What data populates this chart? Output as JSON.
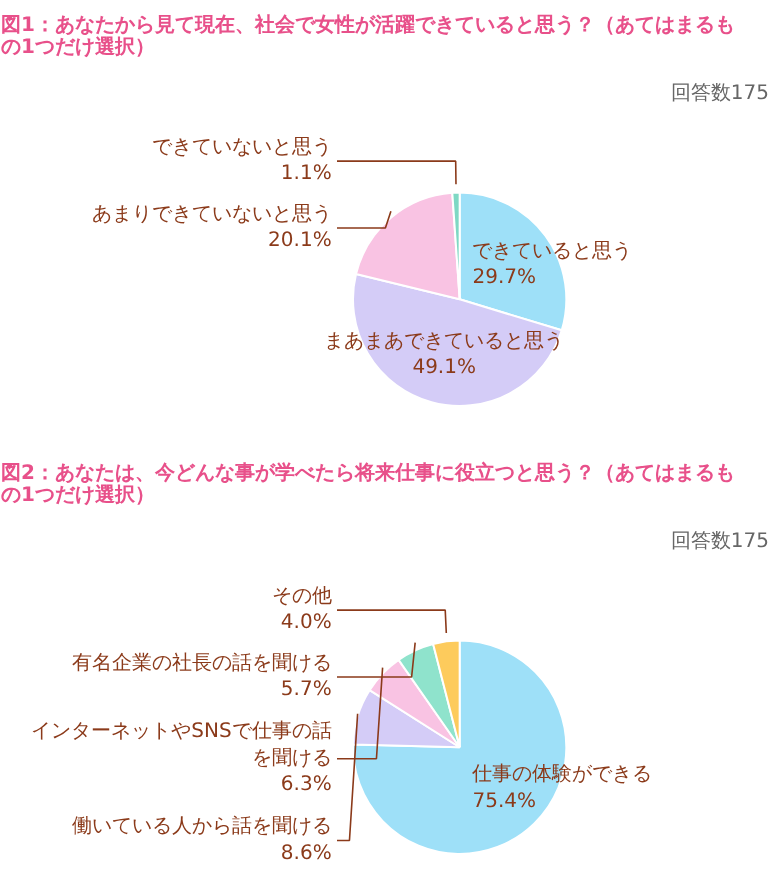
{
  "chart_data": [
    {
      "type": "pie",
      "title": "図1：あなたから見て現在、社会で女性が活躍できていると思う？（あてはまるもの1つだけ選択）",
      "annotations": [
        "回答数175"
      ],
      "categories": [
        "できていると思う",
        "まあまあできていると思う",
        "あまりできていないと思う",
        "できていないと思う"
      ],
      "values": [
        29.7,
        49.1,
        20.1,
        1.1
      ],
      "value_labels": [
        "29.7%",
        "49.1%",
        "20.1%",
        "1.1%"
      ],
      "colors": [
        "#9ee0f8",
        "#d4ccf7",
        "#f9c3e3",
        "#7fd8c4"
      ]
    },
    {
      "type": "pie",
      "title": "図2：あなたは、今どんな事が学べたら将来仕事に役立つと思う？（あてはまるもの1つだけ選択）",
      "annotations": [
        "回答数175"
      ],
      "categories": [
        "仕事の体験ができる",
        "働いている人から話を聞ける",
        "インターネットやSNSで仕事の話を聞ける",
        "有名企業の社長の話を聞ける",
        "その他"
      ],
      "values": [
        75.4,
        8.6,
        6.3,
        5.7,
        4.0
      ],
      "value_labels": [
        "75.4%",
        "8.6%",
        "6.3%",
        "5.7%",
        "4.0%"
      ],
      "colors": [
        "#9ee0f8",
        "#d4ccf7",
        "#f9c3e3",
        "#8fe3cc",
        "#fdcb5c"
      ]
    }
  ]
}
